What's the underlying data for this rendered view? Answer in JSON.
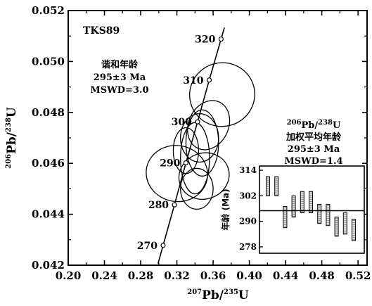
{
  "chart_data": [
    {
      "type": "scatter",
      "subtype": "concordia-diagram",
      "sample": "TKS89",
      "x_axis": {
        "label_pre": "207",
        "label_main": "Pb/",
        "label_sup2": "235",
        "label_post": "U",
        "range": [
          0.2,
          0.53
        ],
        "ticks": [
          "0.20",
          "0.24",
          "0.28",
          "0.32",
          "0.36",
          "0.40",
          "0.44",
          "0.48",
          "0.52"
        ]
      },
      "y_axis": {
        "label_pre": "206",
        "label_main": "Pb/",
        "label_sup2": "238",
        "label_post": "U",
        "range": [
          0.042,
          0.052
        ],
        "ticks": [
          "0.042",
          "0.044",
          "0.046",
          "0.048",
          "0.050",
          "0.052"
        ]
      },
      "concordia_points": [
        {
          "age": "270",
          "x": 0.3048,
          "y": 0.04278
        },
        {
          "age": "280",
          "x": 0.3173,
          "y": 0.04437
        },
        {
          "age": "290",
          "x": 0.33,
          "y": 0.04602
        },
        {
          "age": "300",
          "x": 0.3428,
          "y": 0.04763
        },
        {
          "age": "310",
          "x": 0.3557,
          "y": 0.04927
        },
        {
          "age": "320",
          "x": 0.3688,
          "y": 0.05088
        }
      ],
      "ellipses": [
        {
          "cx": 0.37,
          "cy": 0.0487,
          "rx": 0.036,
          "ry": 0.00125,
          "angle": -15
        },
        {
          "cx": 0.345,
          "cy": 0.047,
          "rx": 0.021,
          "ry": 0.00095,
          "angle": 0
        },
        {
          "cx": 0.34,
          "cy": 0.0462,
          "rx": 0.016,
          "ry": 0.0014,
          "angle": 0
        },
        {
          "cx": 0.32,
          "cy": 0.0456,
          "rx": 0.034,
          "ry": 0.0011,
          "angle": 10
        },
        {
          "cx": 0.35,
          "cy": 0.0455,
          "rx": 0.028,
          "ry": 0.0009,
          "angle": -20
        },
        {
          "cx": 0.348,
          "cy": 0.0468,
          "rx": 0.018,
          "ry": 0.0013,
          "angle": 0
        },
        {
          "cx": 0.355,
          "cy": 0.0475,
          "rx": 0.022,
          "ry": 0.001,
          "angle": 25
        },
        {
          "cx": 0.342,
          "cy": 0.045,
          "rx": 0.018,
          "ry": 0.0008,
          "angle": 0
        },
        {
          "cx": 0.33,
          "cy": 0.0465,
          "rx": 0.014,
          "ry": 0.0009,
          "angle": 0
        }
      ],
      "annotations": {
        "concordia_title": "谐和年龄",
        "concordia_age": "295±3 Ma",
        "concordia_mswd": "MSWD=3.0"
      }
    },
    {
      "type": "bar",
      "subtype": "weighted-mean-inset",
      "title_pre": "206",
      "title_main": "Pb/",
      "title_sup2": "238",
      "title_post": "U",
      "subtitle": "加权平均年龄",
      "age": "295±3 Ma",
      "mswd": "MSWD=1.4",
      "ylabel": "年龄 (Ma)",
      "ylim": [
        275,
        316
      ],
      "yticks": [
        "278",
        "290",
        "302",
        "314"
      ],
      "mean": 295,
      "bars": [
        {
          "low": 302,
          "high": 311
        },
        {
          "low": 302,
          "high": 311
        },
        {
          "low": 287,
          "high": 297
        },
        {
          "low": 292,
          "high": 302
        },
        {
          "low": 294,
          "high": 304
        },
        {
          "low": 294,
          "high": 304
        },
        {
          "low": 289,
          "high": 298
        },
        {
          "low": 288,
          "high": 298
        },
        {
          "low": 283,
          "high": 292
        },
        {
          "low": 284,
          "high": 294
        },
        {
          "low": 281,
          "high": 291
        }
      ]
    }
  ]
}
